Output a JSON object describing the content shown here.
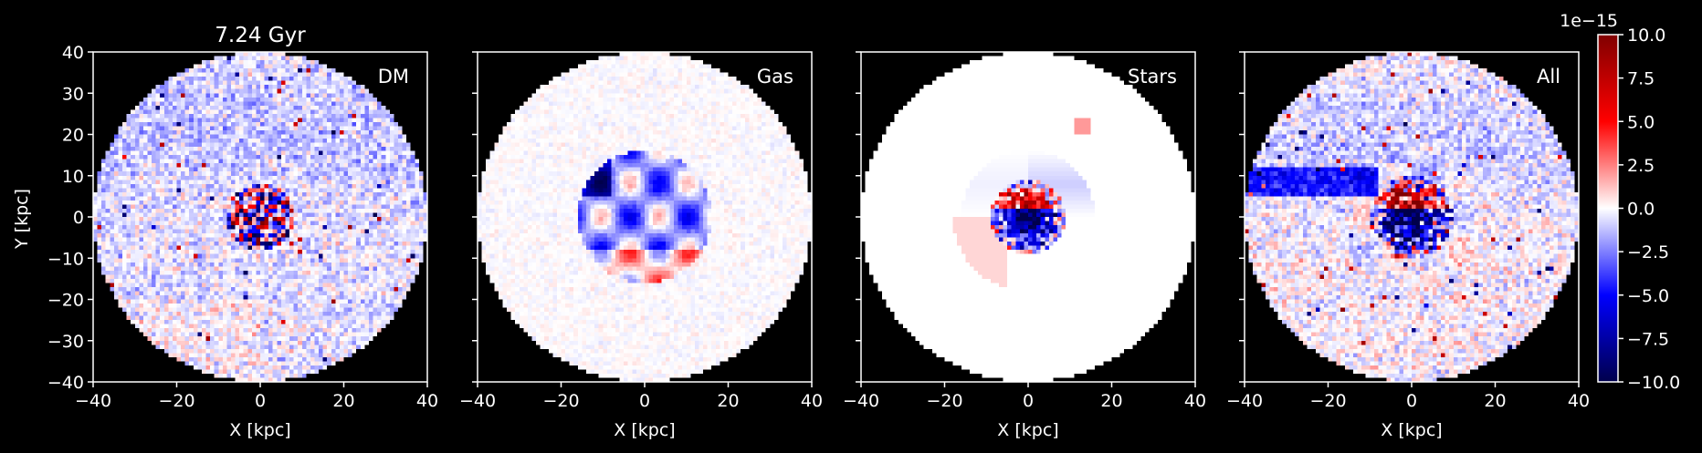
{
  "chart_data": {
    "type": "heatmap",
    "title": "7.24 Gyr",
    "shared_ylabel": "Y [kpc]",
    "colormap": "seismic",
    "grid": false,
    "panels": [
      {
        "label": "DM",
        "xlabel": "X [kpc]"
      },
      {
        "label": "Gas",
        "xlabel": "X [kpc]"
      },
      {
        "label": "Stars",
        "xlabel": "X [kpc]"
      },
      {
        "label": "All",
        "xlabel": "X [kpc]"
      }
    ],
    "xlim": [
      -40,
      40
    ],
    "ylim": [
      -40,
      40
    ],
    "xticks": [
      "−40",
      "−20",
      "0",
      "20",
      "40"
    ],
    "yticks": [
      "40",
      "30",
      "20",
      "10",
      "0",
      "−10",
      "−20",
      "−30",
      "−40"
    ],
    "colorbar": {
      "range": [
        -10.0,
        10.0
      ],
      "offset_label": "1e−15",
      "ticks": [
        "10.0",
        "7.5",
        "5.0",
        "2.5",
        "0.0",
        "−2.5",
        "−5.0",
        "−7.5",
        "−10.0"
      ],
      "colors": [
        "#00004c",
        "#0000ff",
        "#ffffff",
        "#ff0000",
        "#800000"
      ]
    },
    "background_color": "#000000",
    "text_color": "#ffffff"
  }
}
